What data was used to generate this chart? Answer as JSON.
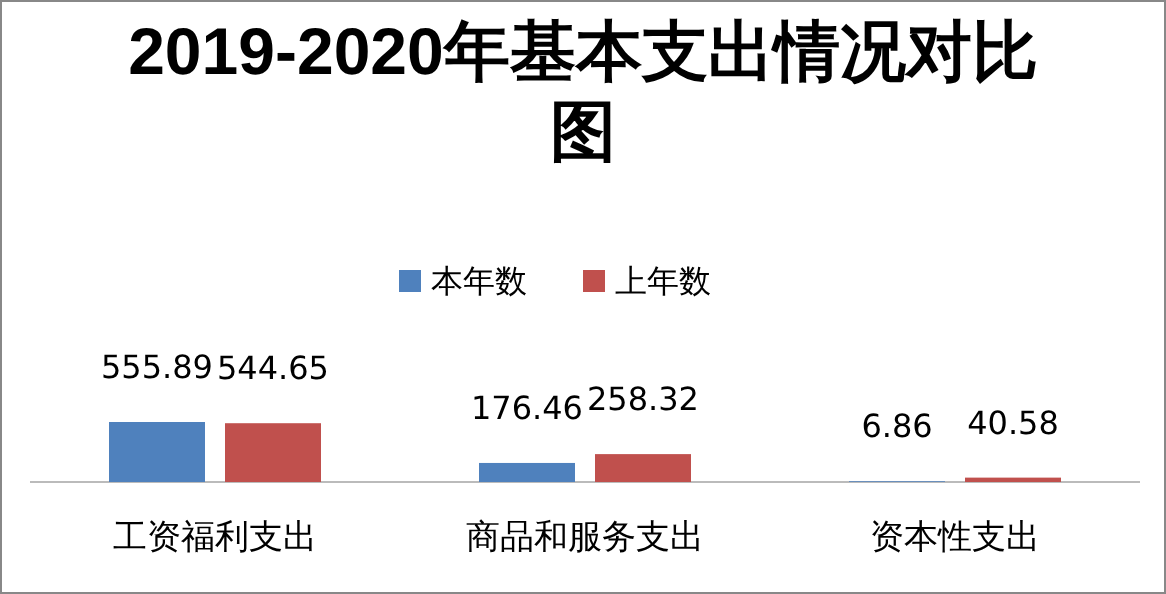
{
  "chart_data": {
    "type": "bar",
    "title": "2019-2020年基本支出情况对比图",
    "categories": [
      "工资福利支出",
      "商品和服务支出",
      "资本性支出"
    ],
    "series": [
      {
        "name": "本年数",
        "color": "#4f81bd",
        "values": [
          555.89,
          176.46,
          6.86
        ]
      },
      {
        "name": "上年数",
        "color": "#c0504d",
        "values": [
          544.65,
          258.32,
          40.58
        ]
      }
    ],
    "data_labels": true,
    "legend": "top"
  }
}
